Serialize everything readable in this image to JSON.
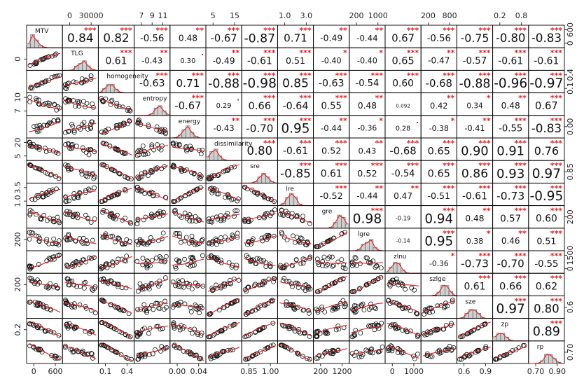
{
  "chart_data": {
    "type": "scatter-matrix",
    "variables": [
      "MTV",
      "TLG",
      "homogeneity",
      "entropy",
      "energy",
      "dissimilarity",
      "sre",
      "lre",
      "gre",
      "lgre",
      "zlnu",
      "szlge",
      "sze",
      "zp",
      "rp"
    ],
    "variable_labels": [
      "MTV",
      "TLG",
      "homogeneity",
      "entropy",
      "energy",
      "dissimilarity",
      "sre",
      "lre",
      "gre",
      "lgre",
      "zlnu",
      "szlge",
      "sze",
      "zp",
      "rp"
    ],
    "correlations": [
      {
        "r": 0,
        "c": 1,
        "value": "0.84",
        "stars": "***"
      },
      {
        "r": 0,
        "c": 2,
        "value": "0.82",
        "stars": "***"
      },
      {
        "r": 0,
        "c": 3,
        "value": "-0.56",
        "stars": "***"
      },
      {
        "r": 0,
        "c": 4,
        "value": "0.48",
        "stars": "**"
      },
      {
        "r": 0,
        "c": 5,
        "value": "-0.67",
        "stars": "***"
      },
      {
        "r": 0,
        "c": 6,
        "value": "-0.87",
        "stars": "***"
      },
      {
        "r": 0,
        "c": 7,
        "value": "0.71",
        "stars": "***"
      },
      {
        "r": 0,
        "c": 8,
        "value": "-0.49",
        "stars": "**"
      },
      {
        "r": 0,
        "c": 9,
        "value": "-0.44",
        "stars": "**"
      },
      {
        "r": 0,
        "c": 10,
        "value": "0.67",
        "stars": "***"
      },
      {
        "r": 0,
        "c": 11,
        "value": "-0.56",
        "stars": "***"
      },
      {
        "r": 0,
        "c": 12,
        "value": "-0.75",
        "stars": "***"
      },
      {
        "r": 0,
        "c": 13,
        "value": "-0.80",
        "stars": "***"
      },
      {
        "r": 0,
        "c": 14,
        "value": "-0.83",
        "stars": "***"
      },
      {
        "r": 1,
        "c": 2,
        "value": "0.61",
        "stars": "***"
      },
      {
        "r": 1,
        "c": 3,
        "value": "-0.43",
        "stars": "**"
      },
      {
        "r": 1,
        "c": 4,
        "value": "0.30",
        "stars": "."
      },
      {
        "r": 1,
        "c": 5,
        "value": "-0.49",
        "stars": "**"
      },
      {
        "r": 1,
        "c": 6,
        "value": "-0.61",
        "stars": "***"
      },
      {
        "r": 1,
        "c": 7,
        "value": "0.51",
        "stars": "***"
      },
      {
        "r": 1,
        "c": 8,
        "value": "-0.40",
        "stars": "*"
      },
      {
        "r": 1,
        "c": 9,
        "value": "-0.40",
        "stars": "*"
      },
      {
        "r": 1,
        "c": 10,
        "value": "0.65",
        "stars": "***"
      },
      {
        "r": 1,
        "c": 11,
        "value": "-0.47",
        "stars": "**"
      },
      {
        "r": 1,
        "c": 12,
        "value": "-0.57",
        "stars": "***"
      },
      {
        "r": 1,
        "c": 13,
        "value": "-0.61",
        "stars": "***"
      },
      {
        "r": 1,
        "c": 14,
        "value": "-0.61",
        "stars": "***"
      },
      {
        "r": 2,
        "c": 3,
        "value": "-0.63",
        "stars": "***"
      },
      {
        "r": 2,
        "c": 4,
        "value": "0.71",
        "stars": "***"
      },
      {
        "r": 2,
        "c": 5,
        "value": "-0.88",
        "stars": "***"
      },
      {
        "r": 2,
        "c": 6,
        "value": "-0.98",
        "stars": "***"
      },
      {
        "r": 2,
        "c": 7,
        "value": "0.85",
        "stars": "***"
      },
      {
        "r": 2,
        "c": 8,
        "value": "-0.63",
        "stars": "***"
      },
      {
        "r": 2,
        "c": 9,
        "value": "-0.54",
        "stars": "***"
      },
      {
        "r": 2,
        "c": 10,
        "value": "0.60",
        "stars": "***"
      },
      {
        "r": 2,
        "c": 11,
        "value": "-0.68",
        "stars": "***"
      },
      {
        "r": 2,
        "c": 12,
        "value": "-0.88",
        "stars": "***"
      },
      {
        "r": 2,
        "c": 13,
        "value": "-0.96",
        "stars": "***"
      },
      {
        "r": 2,
        "c": 14,
        "value": "-0.97",
        "stars": "***"
      },
      {
        "r": 3,
        "c": 4,
        "value": "-0.67",
        "stars": "***"
      },
      {
        "r": 3,
        "c": 5,
        "value": "0.29",
        "stars": "."
      },
      {
        "r": 3,
        "c": 6,
        "value": "0.66",
        "stars": "***"
      },
      {
        "r": 3,
        "c": 7,
        "value": "-0.64",
        "stars": "***"
      },
      {
        "r": 3,
        "c": 8,
        "value": "0.55",
        "stars": "***"
      },
      {
        "r": 3,
        "c": 9,
        "value": "0.48",
        "stars": "**"
      },
      {
        "r": 3,
        "c": 10,
        "value": "0.092",
        "stars": ""
      },
      {
        "r": 3,
        "c": 11,
        "value": "0.42",
        "stars": "**"
      },
      {
        "r": 3,
        "c": 12,
        "value": "0.34",
        "stars": "*"
      },
      {
        "r": 3,
        "c": 13,
        "value": "0.48",
        "stars": "**"
      },
      {
        "r": 3,
        "c": 14,
        "value": "0.67",
        "stars": "***"
      },
      {
        "r": 4,
        "c": 5,
        "value": "-0.43",
        "stars": "**"
      },
      {
        "r": 4,
        "c": 6,
        "value": "-0.70",
        "stars": "***"
      },
      {
        "r": 4,
        "c": 7,
        "value": "0.95",
        "stars": "***"
      },
      {
        "r": 4,
        "c": 8,
        "value": "-0.44",
        "stars": "**"
      },
      {
        "r": 4,
        "c": 9,
        "value": "-0.36",
        "stars": "*"
      },
      {
        "r": 4,
        "c": 10,
        "value": "0.28",
        "stars": "."
      },
      {
        "r": 4,
        "c": 11,
        "value": "-0.38",
        "stars": "*"
      },
      {
        "r": 4,
        "c": 12,
        "value": "-0.41",
        "stars": "**"
      },
      {
        "r": 4,
        "c": 13,
        "value": "-0.55",
        "stars": "***"
      },
      {
        "r": 4,
        "c": 14,
        "value": "-0.83",
        "stars": "***"
      },
      {
        "r": 5,
        "c": 6,
        "value": "0.80",
        "stars": "***"
      },
      {
        "r": 5,
        "c": 7,
        "value": "-0.61",
        "stars": "***"
      },
      {
        "r": 5,
        "c": 8,
        "value": "0.52",
        "stars": "***"
      },
      {
        "r": 5,
        "c": 9,
        "value": "0.43",
        "stars": "**"
      },
      {
        "r": 5,
        "c": 10,
        "value": "-0.68",
        "stars": "***"
      },
      {
        "r": 5,
        "c": 11,
        "value": "0.65",
        "stars": "***"
      },
      {
        "r": 5,
        "c": 12,
        "value": "0.90",
        "stars": "***"
      },
      {
        "r": 5,
        "c": 13,
        "value": "0.91",
        "stars": "***"
      },
      {
        "r": 5,
        "c": 14,
        "value": "0.76",
        "stars": "***"
      },
      {
        "r": 6,
        "c": 7,
        "value": "-0.85",
        "stars": "***"
      },
      {
        "r": 6,
        "c": 8,
        "value": "0.61",
        "stars": "***"
      },
      {
        "r": 6,
        "c": 9,
        "value": "0.52",
        "stars": "***"
      },
      {
        "r": 6,
        "c": 10,
        "value": "-0.54",
        "stars": "***"
      },
      {
        "r": 6,
        "c": 11,
        "value": "0.65",
        "stars": "***"
      },
      {
        "r": 6,
        "c": 12,
        "value": "0.86",
        "stars": "***"
      },
      {
        "r": 6,
        "c": 13,
        "value": "0.93",
        "stars": "***"
      },
      {
        "r": 6,
        "c": 14,
        "value": "0.97",
        "stars": "***"
      },
      {
        "r": 7,
        "c": 8,
        "value": "-0.52",
        "stars": "***"
      },
      {
        "r": 7,
        "c": 9,
        "value": "-0.44",
        "stars": "**"
      },
      {
        "r": 7,
        "c": 10,
        "value": "0.47",
        "stars": "**"
      },
      {
        "r": 7,
        "c": 11,
        "value": "-0.51",
        "stars": "***"
      },
      {
        "r": 7,
        "c": 12,
        "value": "-0.61",
        "stars": "***"
      },
      {
        "r": 7,
        "c": 13,
        "value": "-0.73",
        "stars": "***"
      },
      {
        "r": 7,
        "c": 14,
        "value": "-0.95",
        "stars": "***"
      },
      {
        "r": 8,
        "c": 9,
        "value": "0.98",
        "stars": "***"
      },
      {
        "r": 8,
        "c": 10,
        "value": "-0.19",
        "stars": ""
      },
      {
        "r": 8,
        "c": 11,
        "value": "0.94",
        "stars": "***"
      },
      {
        "r": 8,
        "c": 12,
        "value": "0.48",
        "stars": "**"
      },
      {
        "r": 8,
        "c": 13,
        "value": "0.57",
        "stars": "***"
      },
      {
        "r": 8,
        "c": 14,
        "value": "0.60",
        "stars": "***"
      },
      {
        "r": 9,
        "c": 10,
        "value": "-0.14",
        "stars": ""
      },
      {
        "r": 9,
        "c": 11,
        "value": "0.95",
        "stars": "***"
      },
      {
        "r": 9,
        "c": 12,
        "value": "0.38",
        "stars": "*"
      },
      {
        "r": 9,
        "c": 13,
        "value": "0.46",
        "stars": "**"
      },
      {
        "r": 9,
        "c": 14,
        "value": "0.51",
        "stars": "***"
      },
      {
        "r": 10,
        "c": 11,
        "value": "-0.36",
        "stars": "*"
      },
      {
        "r": 10,
        "c": 12,
        "value": "-0.73",
        "stars": "***"
      },
      {
        "r": 10,
        "c": 13,
        "value": "-0.70",
        "stars": "***"
      },
      {
        "r": 10,
        "c": 14,
        "value": "-0.55",
        "stars": "***"
      },
      {
        "r": 11,
        "c": 12,
        "value": "0.61",
        "stars": "***"
      },
      {
        "r": 11,
        "c": 13,
        "value": "0.66",
        "stars": "***"
      },
      {
        "r": 11,
        "c": 14,
        "value": "0.62",
        "stars": "***"
      },
      {
        "r": 12,
        "c": 13,
        "value": "0.97",
        "stars": "***"
      },
      {
        "r": 12,
        "c": 14,
        "value": "0.80",
        "stars": "***"
      },
      {
        "r": 13,
        "c": 14,
        "value": "0.89",
        "stars": "***"
      }
    ],
    "top_axis_ticks": [
      {
        "col": 1,
        "labels": [
          "0",
          "30000"
        ]
      },
      {
        "col": 3,
        "labels": [
          "7",
          "9",
          "11"
        ]
      },
      {
        "col": 5,
        "labels": [
          "5",
          "15"
        ]
      },
      {
        "col": 7,
        "labels": [
          "1.0",
          "3.0"
        ]
      },
      {
        "col": 9,
        "labels": [
          "200",
          "1000"
        ]
      },
      {
        "col": 11,
        "labels": [
          "200",
          "800"
        ]
      },
      {
        "col": 13,
        "labels": [
          "0.2",
          "0.8"
        ]
      }
    ],
    "bottom_axis_ticks": [
      {
        "col": 0,
        "labels": [
          "0",
          "600"
        ]
      },
      {
        "col": 2,
        "labels": [
          "0.1",
          "0.4"
        ]
      },
      {
        "col": 4,
        "labels": [
          "0.00",
          "0.04"
        ]
      },
      {
        "col": 6,
        "labels": [
          "0.85",
          "1.00"
        ]
      },
      {
        "col": 8,
        "labels": [
          "200",
          "1200"
        ]
      },
      {
        "col": 10,
        "labels": [
          "0",
          "1000"
        ]
      },
      {
        "col": 12,
        "labels": [
          "0.6",
          "0.9"
        ]
      },
      {
        "col": 14,
        "labels": [
          "0.70",
          "0.90"
        ]
      }
    ],
    "left_axis_ticks": [
      {
        "row": 1,
        "labels": [
          "0"
        ]
      },
      {
        "row": 3,
        "labels": [
          "7",
          "10"
        ]
      },
      {
        "row": 5,
        "labels": [
          "5",
          "20"
        ]
      },
      {
        "row": 7,
        "labels": [
          "1.0",
          "3.5"
        ]
      },
      {
        "row": 9,
        "labels": [
          "200"
        ]
      },
      {
        "row": 11,
        "labels": [
          "200"
        ]
      },
      {
        "row": 13,
        "labels": [
          "0.2"
        ]
      }
    ],
    "right_axis_ticks": [
      {
        "row": 0,
        "labels": [
          "0",
          "600"
        ]
      },
      {
        "row": 2,
        "labels": [
          "0.1",
          "0.4"
        ]
      },
      {
        "row": 4,
        "labels": [
          "0.00"
        ]
      },
      {
        "row": 6,
        "labels": [
          "0.85"
        ]
      },
      {
        "row": 8,
        "labels": [
          "200"
        ]
      },
      {
        "row": 10,
        "labels": [
          "0",
          "1500"
        ]
      },
      {
        "row": 12,
        "labels": [
          "0.6"
        ]
      },
      {
        "row": 14,
        "labels": [
          "0.70"
        ]
      }
    ],
    "grid": false,
    "legend": "none"
  }
}
